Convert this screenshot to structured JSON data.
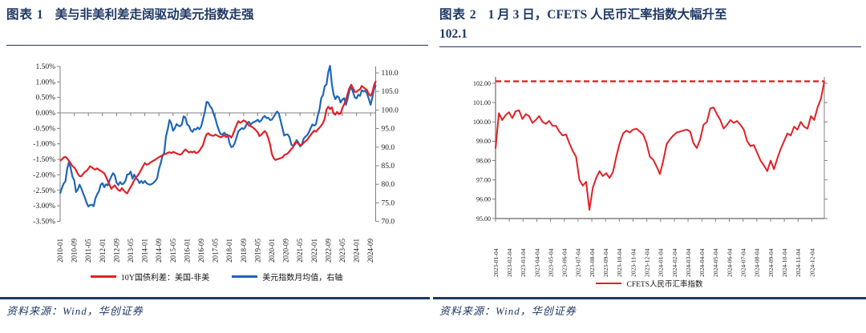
{
  "page": {
    "colors": {
      "accent_navy": "#1F3864",
      "series_red": "#E02128",
      "series_blue": "#1F66B7",
      "axis_gray": "#808080",
      "tick_text": "#1a1a1a"
    },
    "figures": [
      {
        "number_label": "图表 1",
        "title": "美与非美利差走阔驱动美元指数走强",
        "title_line2": "",
        "legend": [
          "10Y国债利差：美国-非美",
          "美元指数月均值，右轴"
        ],
        "source": "资料来源：Wind，华创证券"
      },
      {
        "number_label": "图表 2",
        "title": "1 月 3 日，CFETS 人民币汇率指数大幅升至",
        "title_line2": "102.1",
        "legend": [
          "CFETS人民币汇率指数"
        ],
        "source": "资料来源：Wind，华创证券"
      }
    ]
  },
  "chart_data": [
    {
      "type": "line",
      "title": "美与非美利差走阔驱动美元指数走强",
      "x_freq": "monthly",
      "x_start": "2010-01",
      "x_end": "2024-12",
      "x_tick_labels": [
        "2010-01",
        "2010-09",
        "2011-05",
        "2012-01",
        "2012-09",
        "2013-05",
        "2014-01",
        "2014-09",
        "2015-05",
        "2016-01",
        "2016-09",
        "2017-05",
        "2018-01",
        "2018-09",
        "2019-05",
        "2020-01",
        "2020-09",
        "2021-05",
        "2022-01",
        "2022-09",
        "2023-05",
        "2024-01",
        "2024-09"
      ],
      "y_left": {
        "min": -3.5,
        "max": 1.5,
        "step": 0.5,
        "ticks": [
          "1.50%",
          "1.00%",
          "0.50%",
          "0.00%",
          "-0.50%",
          "-1.00%",
          "-1.50%",
          "-2.00%",
          "-2.50%",
          "-3.00%",
          "-3.50%"
        ]
      },
      "y_right": {
        "min": 70,
        "max": 110,
        "step": 5,
        "ticks": [
          "110.0",
          "105.0",
          "100.0",
          "95.0",
          "90.0",
          "85.0",
          "80.0",
          "75.0",
          "70.0"
        ]
      },
      "legend_position": "bottom",
      "grid": false,
      "series": [
        {
          "name": "美元指数月均值，右轴",
          "axis": "right",
          "color": "#1F66B7",
          "values": [
            77.5,
            79.0,
            80.2,
            80.8,
            84.2,
            86.0,
            84.3,
            82.0,
            81.1,
            77.9,
            78.6,
            79.9,
            78.9,
            77.6,
            76.4,
            75.0,
            74.0,
            74.4,
            74.5,
            74.1,
            76.2,
            77.3,
            78.1,
            79.9,
            80.3,
            79.2,
            80.0,
            79.7,
            81.0,
            82.1,
            83.0,
            82.4,
            80.4,
            79.8,
            80.6,
            80.0,
            80.2,
            80.9,
            82.6,
            82.7,
            83.4,
            81.5,
            82.6,
            81.6,
            81.2,
            80.3,
            80.9,
            80.3,
            80.9,
            80.3,
            80.0,
            79.9,
            80.1,
            80.4,
            80.9,
            81.6,
            84.1,
            85.6,
            87.6,
            88.5,
            92.9,
            94.8,
            97.3,
            96.4,
            94.4,
            95.1,
            96.2,
            95.8,
            95.6,
            96.1,
            98.3,
            98.0,
            96.1,
            95.8,
            94.6,
            94.1,
            94.9,
            94.7,
            95.3,
            94.8,
            95.6,
            97.6,
            99.4,
            102.2,
            102.0,
            101.0,
            100.4,
            99.0,
            97.7,
            95.9,
            94.5,
            93.5,
            93.4,
            93.9,
            93.4,
            93.3,
            91.1,
            90.0,
            90.2,
            91.1,
            92.6,
            94.2,
            94.7,
            95.1,
            94.9,
            95.4,
            96.5,
            96.8,
            96.1,
            96.5,
            96.8,
            97.0,
            97.4,
            96.8,
            97.2,
            98.0,
            98.4,
            97.8,
            97.9,
            97.3,
            97.4,
            98.1,
            98.9,
            99.6,
            99.0,
            97.1,
            95.1,
            93.1,
            93.4,
            93.4,
            92.7,
            90.8,
            90.3,
            90.6,
            91.9,
            91.3,
            90.2,
            90.6,
            92.2,
            92.8,
            93.2,
            94.0,
            95.1,
            96.1,
            95.8,
            96.1,
            98.4,
            100.1,
            103.2,
            104.0,
            106.4,
            106.9,
            110.2,
            111.9,
            107.1,
            104.2,
            102.9,
            103.7,
            103.4,
            102.0,
            102.8,
            103.2,
            101.4,
            103.1,
            105.2,
            106.2,
            104.9,
            103.4,
            103.1,
            104.1,
            103.8,
            105.3,
            105.0,
            105.2,
            104.4,
            102.9,
            101.4,
            103.4,
            105.8,
            106.7
          ]
        },
        {
          "name": "10Y国债利差：美国-非美",
          "axis": "left",
          "color": "#E02128",
          "values": [
            -1.55,
            -1.5,
            -1.44,
            -1.42,
            -1.47,
            -1.55,
            -1.63,
            -1.72,
            -1.76,
            -1.85,
            -1.97,
            -2.04,
            -2.05,
            -1.97,
            -1.91,
            -1.87,
            -1.8,
            -1.72,
            -1.76,
            -1.81,
            -1.83,
            -1.79,
            -1.84,
            -1.87,
            -1.91,
            -1.95,
            -2.06,
            -2.2,
            -2.32,
            -2.45,
            -2.39,
            -2.34,
            -2.43,
            -2.49,
            -2.52,
            -2.43,
            -2.5,
            -2.56,
            -2.6,
            -2.49,
            -2.39,
            -2.29,
            -2.17,
            -2.09,
            -2.02,
            -1.93,
            -1.83,
            -1.72,
            -1.62,
            -1.67,
            -1.66,
            -1.61,
            -1.57,
            -1.54,
            -1.51,
            -1.47,
            -1.43,
            -1.4,
            -1.37,
            -1.34,
            -1.32,
            -1.29,
            -1.27,
            -1.3,
            -1.26,
            -1.28,
            -1.31,
            -1.33,
            -1.35,
            -1.32,
            -1.24,
            -1.18,
            -1.23,
            -1.28,
            -1.25,
            -1.28,
            -1.24,
            -1.3,
            -1.28,
            -1.22,
            -1.13,
            -1.04,
            -0.84,
            -0.69,
            -0.66,
            -0.71,
            -0.73,
            -0.74,
            -0.7,
            -0.73,
            -0.76,
            -0.79,
            -0.76,
            -0.72,
            -0.78,
            -0.75,
            -0.73,
            -0.8,
            -0.69,
            -0.54,
            -0.39,
            -0.27,
            -0.32,
            -0.29,
            -0.24,
            -0.27,
            -0.33,
            -0.41,
            -0.43,
            -0.46,
            -0.51,
            -0.56,
            -0.63,
            -0.75,
            -0.71,
            -0.64,
            -0.59,
            -0.66,
            -0.82,
            -1.02,
            -1.32,
            -1.46,
            -1.52,
            -1.5,
            -1.48,
            -1.46,
            -1.44,
            -1.37,
            -1.34,
            -1.31,
            -1.24,
            -1.17,
            -1.11,
            -0.97,
            -0.94,
            -1.0,
            -1.04,
            -1.02,
            -0.97,
            -0.92,
            -0.87,
            -0.79,
            -0.71,
            -0.64,
            -0.57,
            -0.61,
            -0.54,
            -0.48,
            -0.41,
            -0.33,
            -0.18,
            0.11,
            0.2,
            0.12,
            0.18,
            -0.02,
            -0.06,
            0.03,
            -0.04,
            -0.02,
            0.16,
            0.28,
            0.41,
            0.62,
            0.8,
            0.91,
            0.8,
            0.68,
            0.68,
            0.73,
            0.76,
            0.87,
            0.82,
            0.78,
            0.73,
            0.6,
            0.55,
            0.67,
            0.9,
            1.03
          ]
        }
      ]
    },
    {
      "type": "line",
      "title": "CFETS人民币汇率指数",
      "x_freq": "weekly",
      "x_start": "2023-01-04",
      "x_end": "2025-01-03",
      "x_tick_labels": [
        "2023-01-04",
        "2023-02-04",
        "2023-03-04",
        "2023-04-04",
        "2023-05-04",
        "2023-06-04",
        "2023-07-04",
        "2023-08-04",
        "2023-09-04",
        "2023-10-04",
        "2023-11-04",
        "2023-12-04",
        "2024-01-04",
        "2024-02-04",
        "2024-03-04",
        "2024-04-04",
        "2024-05-04",
        "2024-06-04",
        "2024-07-04",
        "2024-08-04",
        "2024-09-04",
        "2024-10-04",
        "2024-11-04",
        "2024-12-04"
      ],
      "y": {
        "min": 95,
        "max": 102,
        "step": 1,
        "ticks": [
          "102.00",
          "101.00",
          "100.00",
          "99.00",
          "98.00",
          "97.00",
          "96.00",
          "95.00"
        ]
      },
      "reference_line": {
        "value": 102.1,
        "style": "dashed",
        "color": "#E02128"
      },
      "legend_position": "bottom",
      "grid": false,
      "series": [
        {
          "name": "CFETS人民币汇率指数",
          "color": "#E02128",
          "values": [
            98.62,
            100.45,
            100.1,
            100.35,
            100.5,
            100.2,
            100.55,
            100.6,
            100.15,
            100.4,
            100.3,
            99.95,
            100.1,
            100.3,
            100.0,
            99.9,
            100.05,
            99.8,
            99.8,
            99.5,
            99.3,
            99.35,
            98.9,
            98.5,
            98.2,
            97.0,
            96.7,
            96.9,
            95.45,
            96.6,
            97.1,
            97.45,
            97.2,
            97.35,
            97.1,
            97.4,
            98.2,
            98.9,
            99.4,
            99.55,
            99.45,
            99.6,
            99.65,
            99.5,
            99.35,
            98.9,
            98.2,
            98.05,
            97.7,
            97.3,
            98.0,
            98.85,
            99.1,
            99.3,
            99.45,
            99.5,
            99.55,
            99.6,
            99.5,
            98.9,
            98.65,
            99.1,
            99.85,
            100.0,
            100.7,
            100.75,
            100.4,
            100.1,
            99.65,
            99.85,
            100.1,
            99.95,
            100.05,
            99.85,
            99.6,
            99.0,
            98.75,
            98.8,
            98.4,
            98.0,
            97.75,
            97.45,
            98.0,
            97.55,
            98.1,
            98.6,
            99.0,
            99.4,
            99.3,
            99.75,
            99.6,
            100.0,
            99.75,
            99.65,
            100.3,
            100.1,
            100.75,
            101.2,
            102.1
          ]
        }
      ]
    }
  ]
}
